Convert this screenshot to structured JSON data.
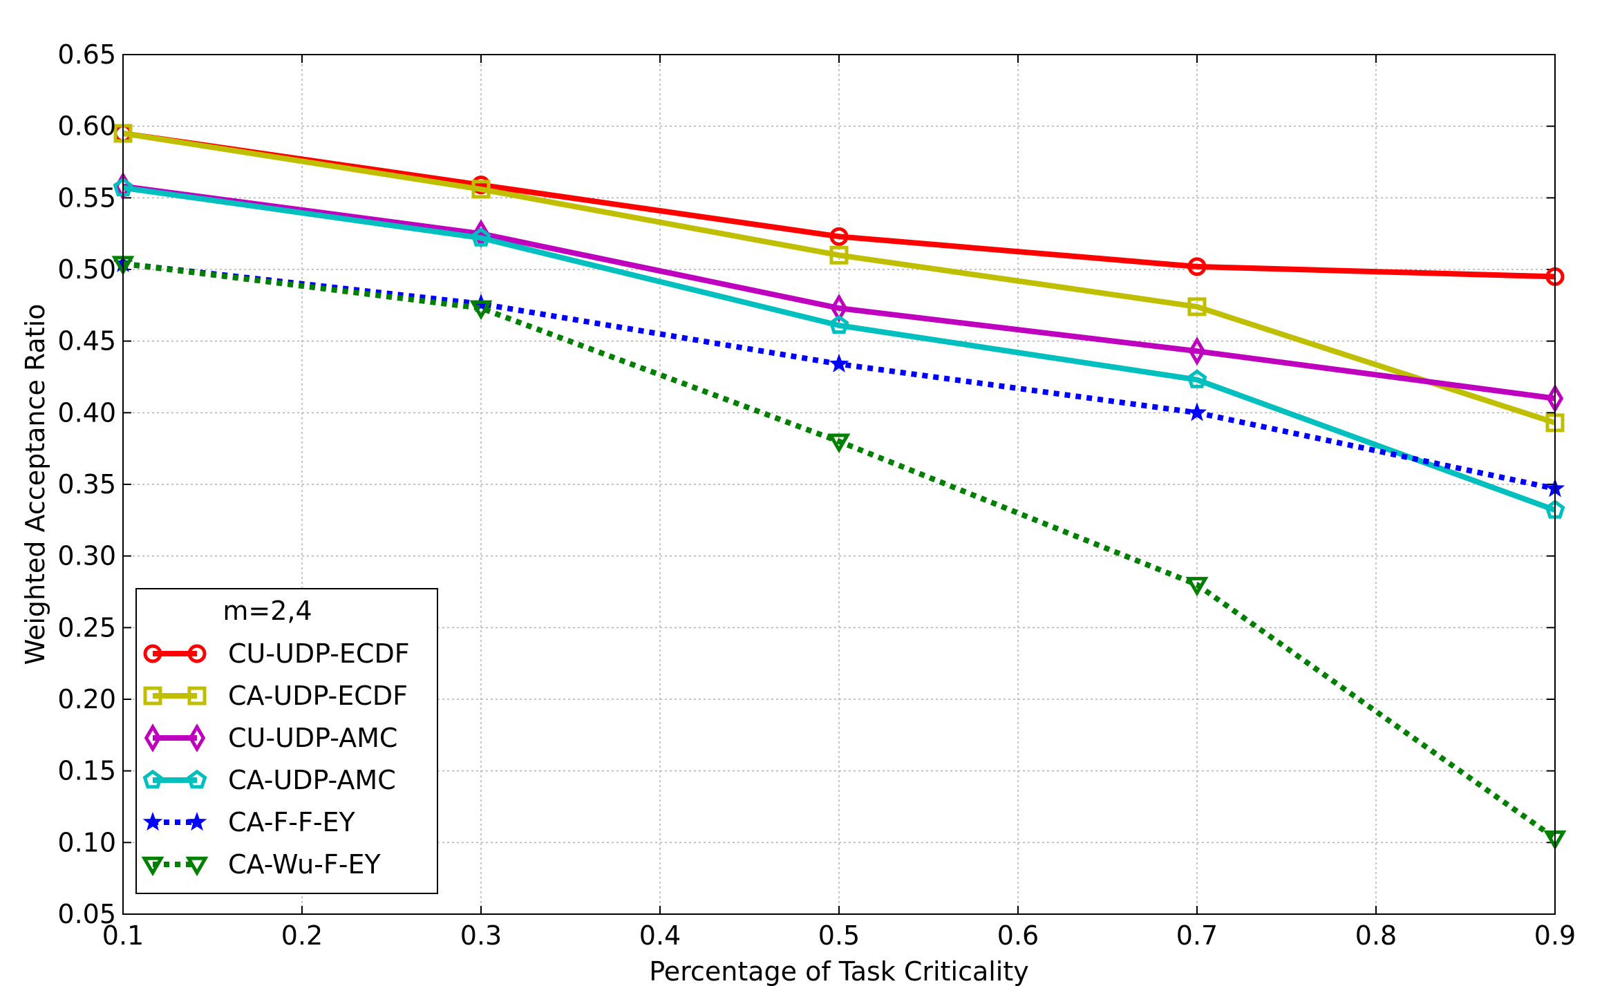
{
  "chart_data": {
    "type": "line",
    "title": "",
    "xlabel": "Percentage of Task Criticality",
    "ylabel": "Weighted Acceptance Ratio",
    "xlim": [
      0.1,
      0.9
    ],
    "ylim": [
      0.05,
      0.65
    ],
    "xticks": [
      "0.1",
      "0.2",
      "0.3",
      "0.4",
      "0.5",
      "0.6",
      "0.7",
      "0.8",
      "0.9"
    ],
    "yticks": [
      "0.05",
      "0.10",
      "0.15",
      "0.20",
      "0.25",
      "0.30",
      "0.35",
      "0.40",
      "0.45",
      "0.50",
      "0.55",
      "0.60",
      "0.65"
    ],
    "grid": true,
    "legend_title": "m=2,4",
    "legend_position": "bottom-left",
    "x": [
      0.1,
      0.3,
      0.5,
      0.7,
      0.9
    ],
    "series": [
      {
        "name": "CU-UDP-ECDF",
        "color": "#ff0000",
        "marker": "circle",
        "dash": "solid",
        "values": [
          0.595,
          0.559,
          0.523,
          0.502,
          0.495
        ]
      },
      {
        "name": "CA-UDP-ECDF",
        "color": "#bfbf00",
        "marker": "square",
        "dash": "solid",
        "values": [
          0.595,
          0.556,
          0.51,
          0.474,
          0.393
        ]
      },
      {
        "name": "CU-UDP-AMC",
        "color": "#bf00bf",
        "marker": "diamond",
        "dash": "solid",
        "values": [
          0.558,
          0.525,
          0.473,
          0.443,
          0.41
        ]
      },
      {
        "name": "CA-UDP-AMC",
        "color": "#00bfbf",
        "marker": "pentagon",
        "dash": "solid",
        "values": [
          0.557,
          0.522,
          0.461,
          0.423,
          0.332
        ]
      },
      {
        "name": "CA-F-F-EY",
        "color": "#0000ff",
        "marker": "star",
        "dash": "dotted",
        "values": [
          0.504,
          0.476,
          0.434,
          0.4,
          0.347
        ]
      },
      {
        "name": "CA-Wu-F-EY",
        "color": "#008000",
        "marker": "triangle-down",
        "dash": "dotted",
        "values": [
          0.504,
          0.473,
          0.38,
          0.28,
          0.103
        ]
      }
    ]
  }
}
